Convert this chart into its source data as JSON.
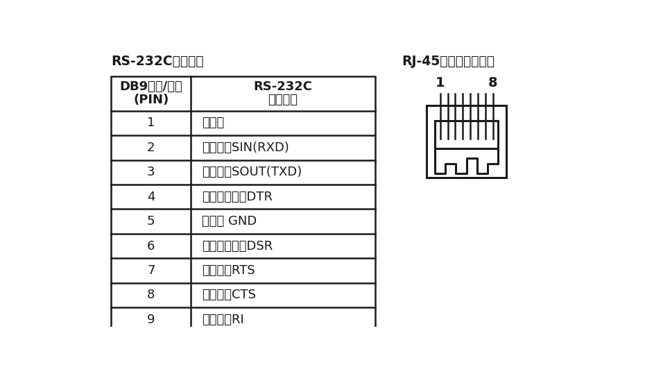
{
  "left_title": "RS-232C引脚分配",
  "right_title": "RJ-45插座引脚分配图",
  "col1_header_line1": "DB9母头/孔型",
  "col1_header_line2": "(PIN)",
  "col2_header_line1": "RS-232C",
  "col2_header_line2": "接口信号",
  "rows": [
    [
      "1",
      "保护地"
    ],
    [
      "2",
      "接收数据SIN(RXD)"
    ],
    [
      "3",
      "发送数据SOUT(TXD)"
    ],
    [
      "4",
      "数据终端准备DTR"
    ],
    [
      "5",
      "信号地 GND"
    ],
    [
      "6",
      "数据装置准备DSR"
    ],
    [
      "7",
      "请求发送RTS"
    ],
    [
      "8",
      "清除发送CTS"
    ],
    [
      "9",
      "响铃指示RI"
    ]
  ],
  "bg_color": "#ffffff",
  "text_color": "#1a1a1a",
  "line_color": "#1a1a1a",
  "title_fontsize": 13.5,
  "header_fontsize": 13,
  "cell_fontsize": 13,
  "rj45_label_1": "1",
  "rj45_label_8": "8",
  "num_pins": 8
}
